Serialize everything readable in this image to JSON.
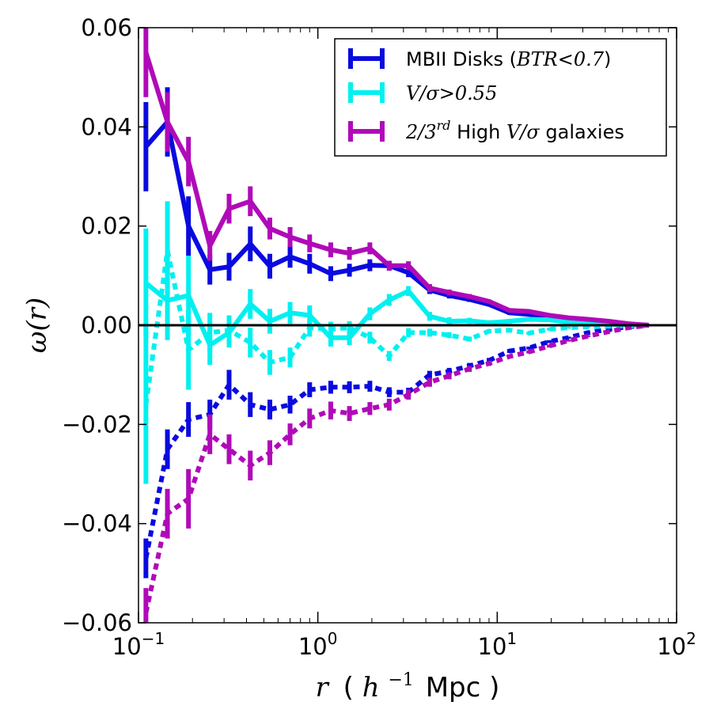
{
  "chart_data": {
    "type": "line",
    "title": "",
    "xlabel": {
      "var": "r",
      "open": "(",
      "unit_base": "h",
      "unit_exp": "−1",
      "unit": "Mpc",
      "close": ")"
    },
    "ylabel": "ω(r)",
    "xscale": "log",
    "xlim": [
      0.1,
      100
    ],
    "ylim": [
      -0.06,
      0.06
    ],
    "xticks": [
      {
        "base": "10",
        "exp": "−1",
        "value": 0.1
      },
      {
        "base": "10",
        "exp": "0",
        "value": 1
      },
      {
        "base": "10",
        "exp": "1",
        "value": 10
      },
      {
        "base": "10",
        "exp": "2",
        "value": 100
      }
    ],
    "yticks": [
      {
        "label": "0.06",
        "value": 0.06
      },
      {
        "label": "0.04",
        "value": 0.04
      },
      {
        "label": "0.02",
        "value": 0.02
      },
      {
        "label": "0.00",
        "value": 0.0
      },
      {
        "label": "−0.02",
        "value": -0.02
      },
      {
        "label": "−0.04",
        "value": -0.04
      },
      {
        "label": "−0.06",
        "value": -0.06
      }
    ],
    "zero_line": 0.0,
    "legend_position": "top-right",
    "x": [
      0.11,
      0.145,
      0.19,
      0.25,
      0.32,
      0.42,
      0.54,
      0.7,
      0.9,
      1.18,
      1.5,
      1.95,
      2.5,
      3.2,
      4.2,
      5.4,
      7.0,
      9.0,
      11.7,
      15.0,
      19.5,
      25.0,
      32.0,
      42.0,
      54.0,
      70.0
    ],
    "series": [
      {
        "name": "MBII Disks",
        "legend": {
          "text": "MBII Disks (",
          "math": "BTR<0.7",
          "tail": ")"
        },
        "color": "#0a0ae0",
        "solid": [
          0.036,
          0.041,
          0.02,
          0.0112,
          0.0118,
          0.0164,
          0.0119,
          0.0138,
          0.0124,
          0.0104,
          0.0111,
          0.0121,
          0.012,
          0.0106,
          0.0071,
          0.006,
          0.0052,
          0.0042,
          0.0025,
          0.0022,
          0.0015,
          0.0012,
          0.0008,
          0.0005,
          0.0002,
          0.0
        ],
        "solid_err": [
          0.009,
          0.007,
          0.006,
          0.003,
          0.0028,
          0.0035,
          0.0025,
          0.0022,
          0.002,
          0.0015,
          0.0013,
          0.0012,
          0.001,
          0.0009,
          0.0008,
          0.0006,
          0.0005,
          0.0004,
          0.0004,
          0.0003,
          0.0003,
          0.0002,
          0.0002,
          0.0002,
          0.0001,
          0.0001
        ],
        "dashed": [
          -0.047,
          -0.025,
          -0.019,
          -0.018,
          -0.012,
          -0.016,
          -0.017,
          -0.016,
          -0.013,
          -0.0125,
          -0.0125,
          -0.0123,
          -0.0135,
          -0.0135,
          -0.01,
          -0.0093,
          -0.0082,
          -0.0071,
          -0.0052,
          -0.0046,
          -0.0033,
          -0.0025,
          -0.0015,
          -0.0008,
          -0.0003,
          0.0
        ],
        "dashed_err": [
          0.004,
          0.004,
          0.0035,
          0.003,
          0.003,
          0.0025,
          0.002,
          0.0018,
          0.0015,
          0.0013,
          0.0012,
          0.0011,
          0.001,
          0.0009,
          0.0008,
          0.0007,
          0.0006,
          0.0005,
          0.0004,
          0.0003,
          0.0003,
          0.0002,
          0.0002,
          0.0001,
          0.0001,
          0.0001
        ]
      },
      {
        "name": "V/σ>0.55",
        "legend": {
          "text": "",
          "math": "V/σ>0.55",
          "tail": ""
        },
        "color": "#00f0f0",
        "solid": [
          0.0085,
          0.005,
          0.006,
          -0.004,
          -0.0015,
          0.0043,
          0.0008,
          0.0025,
          0.002,
          -0.0025,
          -0.0025,
          0.0023,
          0.0051,
          0.0069,
          0.0018,
          0.0008,
          0.0009,
          0.0005,
          0.0008,
          0.0012,
          0.0011,
          0.0006,
          0.0004,
          0.0002,
          0.0001,
          0.0
        ],
        "solid_err": [
          0.011,
          0.008,
          0.008,
          0.004,
          0.003,
          0.003,
          0.0025,
          0.0022,
          0.002,
          0.0018,
          0.0015,
          0.0013,
          0.0012,
          0.001,
          0.0009,
          0.0008,
          0.0006,
          0.0005,
          0.0005,
          0.0004,
          0.0003,
          0.0003,
          0.0002,
          0.0002,
          0.0001,
          0.0001
        ],
        "dashed": [
          -0.016,
          0.015,
          -0.005,
          -0.0015,
          -0.001,
          -0.0035,
          -0.0075,
          -0.0065,
          -0.0005,
          -0.0008,
          -0.0005,
          -0.0025,
          -0.0062,
          -0.0015,
          -0.0015,
          -0.002,
          -0.0028,
          -0.0012,
          -0.001,
          -0.0016,
          -0.0008,
          -0.0005,
          -0.0003,
          -0.0002,
          -0.0001,
          0.0
        ],
        "dashed_err": [
          0.016,
          0.01,
          0.008,
          0.004,
          0.003,
          0.003,
          0.0025,
          0.002,
          0.0018,
          0.0015,
          0.0013,
          0.0012,
          0.001,
          0.0009,
          0.0008,
          0.0006,
          0.0005,
          0.0004,
          0.0004,
          0.0003,
          0.0003,
          0.0002,
          0.0002,
          0.0001,
          0.0001,
          0.0001
        ]
      },
      {
        "name": "2/3rd High V/σ galaxies",
        "legend": {
          "text": "",
          "math": "2/3",
          "sup": "rd",
          "tail": " High ",
          "math2": "V/σ",
          "tail2": " galaxies"
        },
        "color": "#b00ab8",
        "solid": [
          0.055,
          0.041,
          0.033,
          0.016,
          0.0235,
          0.025,
          0.0195,
          0.0178,
          0.0165,
          0.0152,
          0.0145,
          0.0155,
          0.012,
          0.012,
          0.0075,
          0.0066,
          0.0058,
          0.0048,
          0.003,
          0.0028,
          0.002,
          0.0015,
          0.0012,
          0.0008,
          0.0003,
          0.0
        ],
        "solid_err": [
          0.009,
          0.006,
          0.005,
          0.003,
          0.003,
          0.003,
          0.0022,
          0.002,
          0.0018,
          0.0015,
          0.0013,
          0.0012,
          0.001,
          0.0009,
          0.0008,
          0.0006,
          0.0005,
          0.0004,
          0.0004,
          0.0003,
          0.0003,
          0.0002,
          0.0002,
          0.0002,
          0.0001,
          0.0001
        ],
        "dashed": [
          -0.058,
          -0.038,
          -0.035,
          -0.022,
          -0.025,
          -0.0283,
          -0.0257,
          -0.022,
          -0.0188,
          -0.0172,
          -0.0178,
          -0.0168,
          -0.016,
          -0.014,
          -0.0115,
          -0.0102,
          -0.0088,
          -0.0077,
          -0.0063,
          -0.0054,
          -0.0042,
          -0.0031,
          -0.0022,
          -0.0013,
          -0.0005,
          0.0
        ],
        "dashed_err": [
          0.005,
          0.005,
          0.006,
          0.004,
          0.003,
          0.003,
          0.0025,
          0.0022,
          0.002,
          0.0018,
          0.0015,
          0.0013,
          0.0012,
          0.001,
          0.0009,
          0.0007,
          0.0006,
          0.0005,
          0.0004,
          0.0003,
          0.0003,
          0.0002,
          0.0002,
          0.0001,
          0.0001,
          0.0001
        ]
      }
    ]
  }
}
